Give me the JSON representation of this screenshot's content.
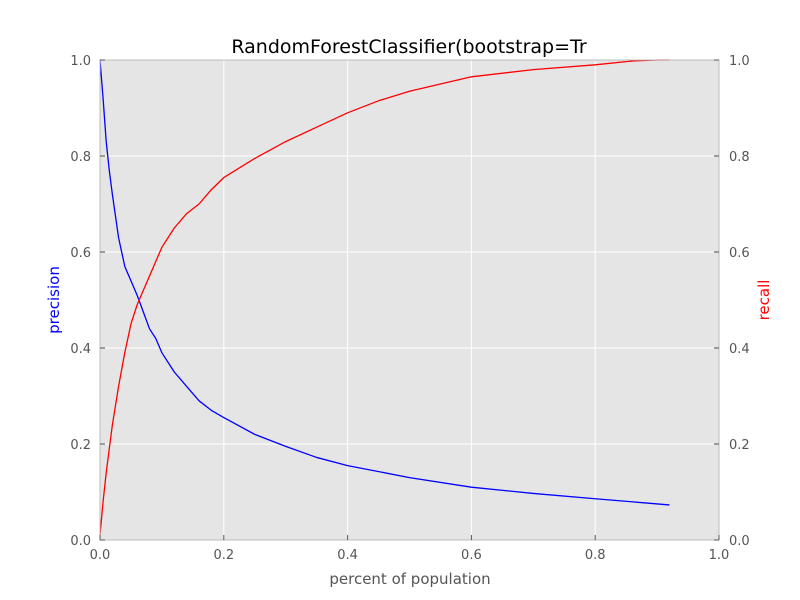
{
  "chart_data": {
    "type": "line",
    "title": "RandomForestClassifier(bootstrap=Tr",
    "xlabel": "percent of population",
    "ylabel_left": "precision",
    "ylabel_right": "recall",
    "xlim": [
      0.0,
      1.0
    ],
    "ylim_left": [
      0.0,
      1.0
    ],
    "ylim_right": [
      0.0,
      1.0
    ],
    "x_ticks": [
      "0.0",
      "0.2",
      "0.4",
      "0.6",
      "0.8",
      "1.0"
    ],
    "y_ticks_left": [
      "0.0",
      "0.2",
      "0.4",
      "0.6",
      "0.8",
      "1.0"
    ],
    "y_ticks_right": [
      "0.0",
      "0.2",
      "0.4",
      "0.6",
      "0.8",
      "1.0"
    ],
    "grid": true,
    "background": "#e5e5e5",
    "series": [
      {
        "axis": "left",
        "color": "#0000ff",
        "x": [
          0.0,
          0.005,
          0.01,
          0.015,
          0.02,
          0.03,
          0.04,
          0.05,
          0.06,
          0.07,
          0.08,
          0.09,
          0.1,
          0.12,
          0.14,
          0.16,
          0.18,
          0.2,
          0.25,
          0.3,
          0.35,
          0.4,
          0.5,
          0.6,
          0.7,
          0.8,
          0.92
        ],
        "y": [
          1.0,
          0.92,
          0.83,
          0.77,
          0.72,
          0.63,
          0.57,
          0.54,
          0.51,
          0.475,
          0.44,
          0.42,
          0.39,
          0.35,
          0.32,
          0.29,
          0.27,
          0.255,
          0.22,
          0.195,
          0.172,
          0.155,
          0.13,
          0.11,
          0.097,
          0.086,
          0.073
        ]
      },
      {
        "axis": "right",
        "color": "#ff0000",
        "x": [
          0.0,
          0.005,
          0.01,
          0.02,
          0.03,
          0.04,
          0.05,
          0.06,
          0.07,
          0.08,
          0.09,
          0.1,
          0.12,
          0.14,
          0.16,
          0.18,
          0.2,
          0.25,
          0.3,
          0.35,
          0.4,
          0.45,
          0.5,
          0.55,
          0.6,
          0.7,
          0.8,
          0.86,
          0.9,
          0.92
        ],
        "y": [
          0.01,
          0.08,
          0.14,
          0.24,
          0.32,
          0.39,
          0.45,
          0.49,
          0.52,
          0.55,
          0.58,
          0.61,
          0.65,
          0.68,
          0.7,
          0.73,
          0.755,
          0.795,
          0.83,
          0.86,
          0.89,
          0.915,
          0.935,
          0.95,
          0.965,
          0.98,
          0.99,
          0.998,
          1.0,
          1.0
        ]
      }
    ]
  }
}
